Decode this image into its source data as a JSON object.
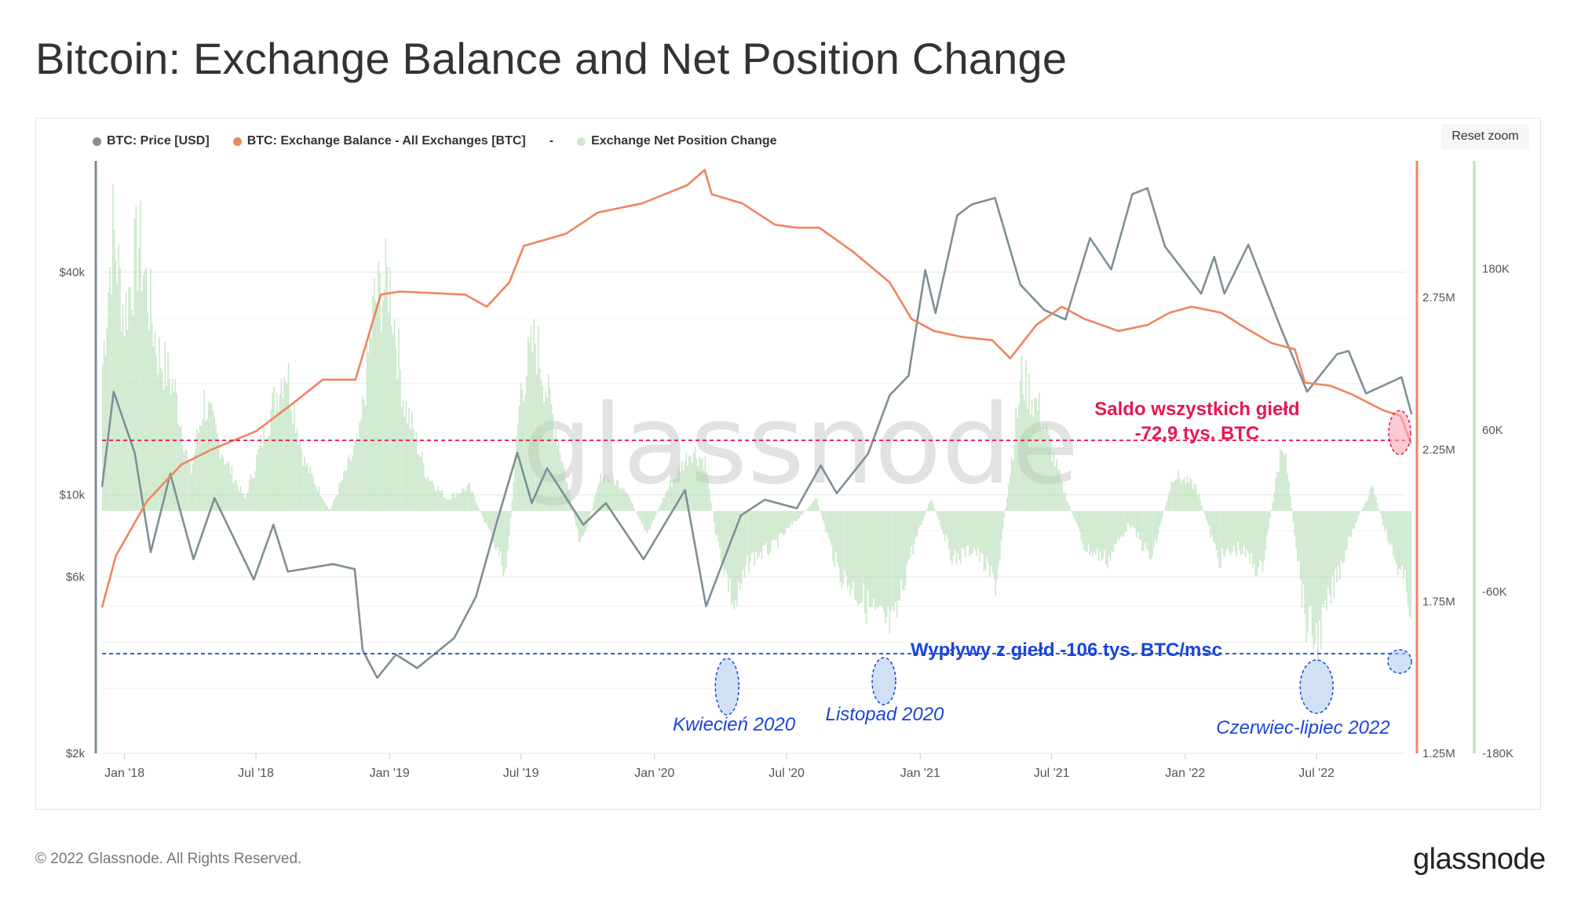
{
  "title": "Bitcoin: Exchange Balance and Net Position Change",
  "legend": {
    "price": "BTC: Price [USD]",
    "balance": "BTC: Exchange Balance - All Exchanges [BTC]",
    "separator": "-",
    "netpos": "Exchange Net Position Change"
  },
  "reset_zoom": "Reset zoom",
  "watermark": "glassnode",
  "footer": {
    "copyright": "© 2022 Glassnode. All Rights Reserved.",
    "logo": "glassnode"
  },
  "colors": {
    "price": "#7f8f95",
    "balance": "#f0845f",
    "netpos": "#a8d9a8",
    "red_annotation": "#e8174f",
    "blue_annotation": "#1946d8"
  },
  "annotations": {
    "balance_label_1": "Saldo wszystkich giełd",
    "balance_label_2": "-72,9 tys. BTC",
    "outflow_label": "Wypływy z giełd -106 tys. BTC/msc",
    "apr2020": "Kwiecień 2020",
    "nov2020": "Listopad 2020",
    "jun2022": "Czerwiec-lipiec 2022"
  },
  "chart_data": {
    "type": "line",
    "x_range": [
      "2017-12-01",
      "2022-10-31"
    ],
    "x_ticks": [
      "Jan '18",
      "Jul '18",
      "Jan '19",
      "Jul '19",
      "Jan '20",
      "Jul '20",
      "Jan '21",
      "Jul '21",
      "Jan '22",
      "Jul '22"
    ],
    "y_left": {
      "scale": "log",
      "range": [
        2000,
        80000
      ],
      "tick_labels": [
        "$2k",
        "$6k",
        "$10k",
        "$40k"
      ],
      "tick_values": [
        2000,
        6000,
        10000,
        40000
      ]
    },
    "y_balance": {
      "range": [
        1250000,
        3200000
      ],
      "tick_labels": [
        "1.25M",
        "1.75M",
        "2.25M",
        "2.75M"
      ],
      "tick_values": [
        1250000,
        1750000,
        2250000,
        2750000
      ]
    },
    "y_netpos": {
      "range": [
        -180000,
        260000
      ],
      "tick_labels": [
        "-180K",
        "-60K",
        "60K",
        "180K"
      ],
      "tick_values": [
        -180000,
        -60000,
        60000,
        180000
      ]
    },
    "series": [
      {
        "name": "BTC: Price [USD]",
        "axis": "left",
        "values": [
          [
            "2017-12-01",
            10500
          ],
          [
            "2017-12-17",
            19000
          ],
          [
            "2018-01-15",
            13000
          ],
          [
            "2018-02-06",
            7000
          ],
          [
            "2018-03-05",
            11400
          ],
          [
            "2018-04-06",
            6700
          ],
          [
            "2018-05-05",
            9800
          ],
          [
            "2018-06-28",
            5900
          ],
          [
            "2018-07-25",
            8300
          ],
          [
            "2018-08-14",
            6200
          ],
          [
            "2018-10-15",
            6500
          ],
          [
            "2018-11-14",
            6300
          ],
          [
            "2018-11-25",
            3800
          ],
          [
            "2018-12-15",
            3200
          ],
          [
            "2019-01-10",
            3700
          ],
          [
            "2019-02-08",
            3400
          ],
          [
            "2019-03-31",
            4100
          ],
          [
            "2019-04-30",
            5300
          ],
          [
            "2019-05-30",
            8600
          ],
          [
            "2019-06-26",
            13000
          ],
          [
            "2019-07-16",
            9500
          ],
          [
            "2019-08-06",
            11800
          ],
          [
            "2019-09-25",
            8300
          ],
          [
            "2019-10-26",
            9500
          ],
          [
            "2019-12-17",
            6700
          ],
          [
            "2020-02-12",
            10300
          ],
          [
            "2020-03-12",
            5000
          ],
          [
            "2020-04-29",
            8800
          ],
          [
            "2020-06-01",
            9700
          ],
          [
            "2020-07-15",
            9200
          ],
          [
            "2020-08-17",
            12000
          ],
          [
            "2020-09-08",
            10100
          ],
          [
            "2020-10-21",
            12900
          ],
          [
            "2020-11-20",
            18600
          ],
          [
            "2020-12-16",
            21000
          ],
          [
            "2021-01-08",
            40500
          ],
          [
            "2021-01-22",
            31000
          ],
          [
            "2021-02-21",
            57000
          ],
          [
            "2021-03-13",
            61000
          ],
          [
            "2021-04-14",
            63500
          ],
          [
            "2021-05-19",
            37000
          ],
          [
            "2021-06-21",
            31600
          ],
          [
            "2021-07-20",
            29800
          ],
          [
            "2021-08-23",
            49500
          ],
          [
            "2021-09-21",
            40700
          ],
          [
            "2021-10-20",
            65000
          ],
          [
            "2021-11-10",
            67500
          ],
          [
            "2021-12-04",
            47000
          ],
          [
            "2022-01-23",
            35000
          ],
          [
            "2022-02-10",
            44000
          ],
          [
            "2022-02-24",
            35000
          ],
          [
            "2022-03-29",
            47500
          ],
          [
            "2022-05-12",
            28500
          ],
          [
            "2022-06-18",
            19000
          ],
          [
            "2022-07-29",
            24000
          ],
          [
            "2022-08-14",
            24500
          ],
          [
            "2022-09-07",
            18800
          ],
          [
            "2022-10-26",
            20800
          ],
          [
            "2022-11-09",
            16500
          ]
        ]
      },
      {
        "name": "BTC: Exchange Balance - All Exchanges [BTC]",
        "axis": "right",
        "values": [
          [
            "2017-12-01",
            1730000
          ],
          [
            "2017-12-20",
            1900000
          ],
          [
            "2018-02-01",
            2080000
          ],
          [
            "2018-03-20",
            2200000
          ],
          [
            "2018-05-01",
            2250000
          ],
          [
            "2018-07-01",
            2310000
          ],
          [
            "2018-08-20",
            2400000
          ],
          [
            "2018-10-01",
            2480000
          ],
          [
            "2018-11-15",
            2480000
          ],
          [
            "2018-12-20",
            2760000
          ],
          [
            "2019-01-15",
            2770000
          ],
          [
            "2019-04-15",
            2760000
          ],
          [
            "2019-05-15",
            2720000
          ],
          [
            "2019-06-15",
            2800000
          ],
          [
            "2019-07-05",
            2920000
          ],
          [
            "2019-09-01",
            2960000
          ],
          [
            "2019-10-15",
            3030000
          ],
          [
            "2019-12-15",
            3060000
          ],
          [
            "2020-02-15",
            3120000
          ],
          [
            "2020-03-10",
            3170000
          ],
          [
            "2020-03-20",
            3090000
          ],
          [
            "2020-05-01",
            3060000
          ],
          [
            "2020-06-15",
            2990000
          ],
          [
            "2020-07-15",
            2980000
          ],
          [
            "2020-08-15",
            2980000
          ],
          [
            "2020-10-01",
            2900000
          ],
          [
            "2020-11-20",
            2800000
          ],
          [
            "2020-12-20",
            2680000
          ],
          [
            "2021-01-20",
            2640000
          ],
          [
            "2021-03-01",
            2620000
          ],
          [
            "2021-04-10",
            2610000
          ],
          [
            "2021-05-05",
            2550000
          ],
          [
            "2021-06-10",
            2660000
          ],
          [
            "2021-07-15",
            2720000
          ],
          [
            "2021-08-15",
            2680000
          ],
          [
            "2021-10-01",
            2640000
          ],
          [
            "2021-11-10",
            2660000
          ],
          [
            "2021-12-10",
            2700000
          ],
          [
            "2022-01-10",
            2720000
          ],
          [
            "2022-02-20",
            2700000
          ],
          [
            "2022-03-25",
            2650000
          ],
          [
            "2022-04-30",
            2600000
          ],
          [
            "2022-06-01",
            2580000
          ],
          [
            "2022-06-15",
            2470000
          ],
          [
            "2022-07-20",
            2460000
          ],
          [
            "2022-08-20",
            2430000
          ],
          [
            "2022-09-30",
            2380000
          ],
          [
            "2022-10-25",
            2360000
          ],
          [
            "2022-11-08",
            2270000
          ]
        ]
      },
      {
        "name": "Exchange Net Position Change",
        "axis": "netpos",
        "values": [
          [
            "2017-12-01",
            120000
          ],
          [
            "2017-12-15",
            230000
          ],
          [
            "2017-12-31",
            160000
          ],
          [
            "2018-01-20",
            220000
          ],
          [
            "2018-02-15",
            130000
          ],
          [
            "2018-03-10",
            100000
          ],
          [
            "2018-04-01",
            30000
          ],
          [
            "2018-04-20",
            90000
          ],
          [
            "2018-05-20",
            40000
          ],
          [
            "2018-06-15",
            10000
          ],
          [
            "2018-07-10",
            60000
          ],
          [
            "2018-08-10",
            120000
          ],
          [
            "2018-09-05",
            40000
          ],
          [
            "2018-10-10",
            0
          ],
          [
            "2018-11-20",
            60000
          ],
          [
            "2018-12-10",
            170000
          ],
          [
            "2018-12-31",
            190000
          ],
          [
            "2019-01-20",
            90000
          ],
          [
            "2019-02-20",
            30000
          ],
          [
            "2019-03-20",
            10000
          ],
          [
            "2019-04-20",
            20000
          ],
          [
            "2019-05-20",
            -20000
          ],
          [
            "2019-06-10",
            -50000
          ],
          [
            "2019-06-30",
            100000
          ],
          [
            "2019-07-20",
            140000
          ],
          [
            "2019-08-20",
            60000
          ],
          [
            "2019-09-20",
            -30000
          ],
          [
            "2019-10-20",
            30000
          ],
          [
            "2019-11-20",
            20000
          ],
          [
            "2019-12-20",
            -20000
          ],
          [
            "2020-01-20",
            20000
          ],
          [
            "2020-02-20",
            50000
          ],
          [
            "2020-03-10",
            40000
          ],
          [
            "2020-03-25",
            -20000
          ],
          [
            "2020-04-20",
            -80000
          ],
          [
            "2020-05-10",
            -40000
          ],
          [
            "2020-06-10",
            -30000
          ],
          [
            "2020-07-10",
            -10000
          ],
          [
            "2020-08-10",
            10000
          ],
          [
            "2020-09-10",
            -50000
          ],
          [
            "2020-10-10",
            -70000
          ],
          [
            "2020-11-05",
            -90000
          ],
          [
            "2020-11-25",
            -95000
          ],
          [
            "2020-12-15",
            -40000
          ],
          [
            "2021-01-15",
            10000
          ],
          [
            "2021-02-15",
            -40000
          ],
          [
            "2021-03-15",
            -30000
          ],
          [
            "2021-04-15",
            -60000
          ],
          [
            "2021-05-20",
            110000
          ],
          [
            "2021-06-15",
            80000
          ],
          [
            "2021-07-15",
            20000
          ],
          [
            "2021-08-15",
            -30000
          ],
          [
            "2021-09-15",
            -40000
          ],
          [
            "2021-10-15",
            -10000
          ],
          [
            "2021-11-15",
            -40000
          ],
          [
            "2021-12-15",
            30000
          ],
          [
            "2022-01-15",
            20000
          ],
          [
            "2022-02-15",
            -40000
          ],
          [
            "2022-03-15",
            -30000
          ],
          [
            "2022-04-15",
            -50000
          ],
          [
            "2022-05-15",
            60000
          ],
          [
            "2022-06-15",
            -90000
          ],
          [
            "2022-07-01",
            -106000
          ],
          [
            "2022-07-20",
            -70000
          ],
          [
            "2022-08-15",
            -20000
          ],
          [
            "2022-09-15",
            20000
          ],
          [
            "2022-10-10",
            -30000
          ],
          [
            "2022-10-30",
            -60000
          ],
          [
            "2022-11-08",
            -80000
          ]
        ]
      }
    ],
    "reference_levels": {
      "balance_btc": 2280000,
      "netpos_btc": -106000
    }
  }
}
